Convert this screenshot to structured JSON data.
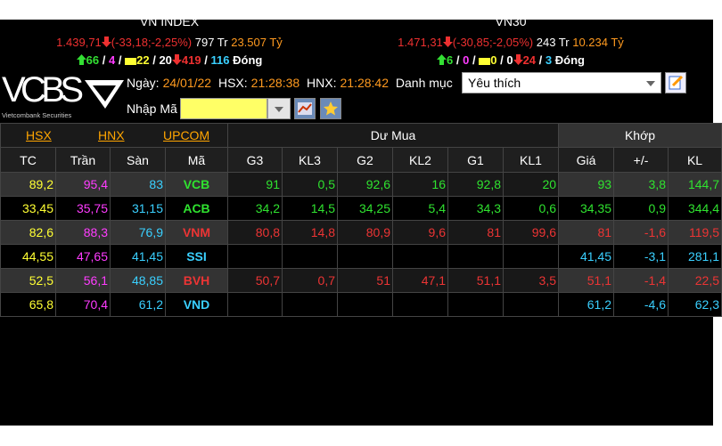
{
  "indices": [
    {
      "name": "VN INDEX",
      "value": "1.439,71",
      "change": "(-33,18;-2,25%)",
      "volume": "797 Tr",
      "amount": "23.507 Tỷ",
      "advances": "66",
      "ceiling": "4",
      "unchanged": "22",
      "no_trade": "20",
      "declines": "419",
      "floor": "116",
      "status": "Đóng"
    },
    {
      "name": "VN30",
      "value": "1.471,31",
      "change": "(-30,85;-2,05%)",
      "volume": "243 Tr",
      "amount": "10.234 Tỷ",
      "advances": "6",
      "ceiling": "0",
      "unchanged": "0",
      "no_trade": "0",
      "declines": "24",
      "floor": "3",
      "status": "Đóng"
    }
  ],
  "separator": "/",
  "logo": {
    "brand": "VCBS",
    "tagline": "Vietcombank Securities"
  },
  "toolbar": {
    "date_label": "Ngày:",
    "date": "24/01/22",
    "hsx_label": "HSX:",
    "hsx_time": "21:28:38",
    "hnx_label": "HNX:",
    "hnx_time": "21:28:42",
    "watchlist_label": "Danh mục",
    "watchlist": "Yêu thích",
    "symbol_label": "Nhập Mã"
  },
  "table": {
    "exchanges": [
      "HSX",
      "HNX",
      "UPCOM"
    ],
    "groups": [
      "Dư Mua",
      "Khớp"
    ],
    "columns": [
      "TC",
      "Trần",
      "Sàn",
      "Mã",
      "G3",
      "KL3",
      "G2",
      "KL2",
      "G1",
      "KL1",
      "Giá",
      "+/-",
      "KL"
    ],
    "rows": [
      {
        "color": "#2fe22f",
        "cells": [
          "89,2",
          "95,4",
          "83",
          "VCB",
          "91",
          "0,5",
          "92,6",
          "16",
          "92,8",
          "20",
          "93",
          "3,8",
          "144,7"
        ]
      },
      {
        "color": "#2fe22f",
        "cells": [
          "33,45",
          "35,75",
          "31,15",
          "ACB",
          "34,2",
          "14,5",
          "34,25",
          "5,4",
          "34,3",
          "0,6",
          "34,35",
          "0,9",
          "344,4"
        ]
      },
      {
        "color": "#ec3434",
        "cells": [
          "82,6",
          "88,3",
          "76,9",
          "VNM",
          "80,8",
          "14,8",
          "80,9",
          "9,6",
          "81",
          "99,6",
          "81",
          "-1,6",
          "119,5"
        ]
      },
      {
        "color": "#3ad0ff",
        "cells": [
          "44,55",
          "47,65",
          "41,45",
          "SSI",
          null,
          null,
          null,
          null,
          null,
          null,
          "41,45",
          "-3,1",
          "281,1"
        ]
      },
      {
        "color": "#ec3434",
        "cells": [
          "52,5",
          "56,1",
          "48,85",
          "BVH",
          "50,7",
          "0,7",
          "51",
          "47,1",
          "51,1",
          "3,5",
          "51,1",
          "-1,4",
          "22,5"
        ]
      },
      {
        "color": "#3ad0ff",
        "cells": [
          "65,8",
          "70,4",
          "61,2",
          "VND",
          null,
          null,
          null,
          null,
          null,
          null,
          "61,2",
          "-4,6",
          "62,3"
        ]
      }
    ]
  }
}
